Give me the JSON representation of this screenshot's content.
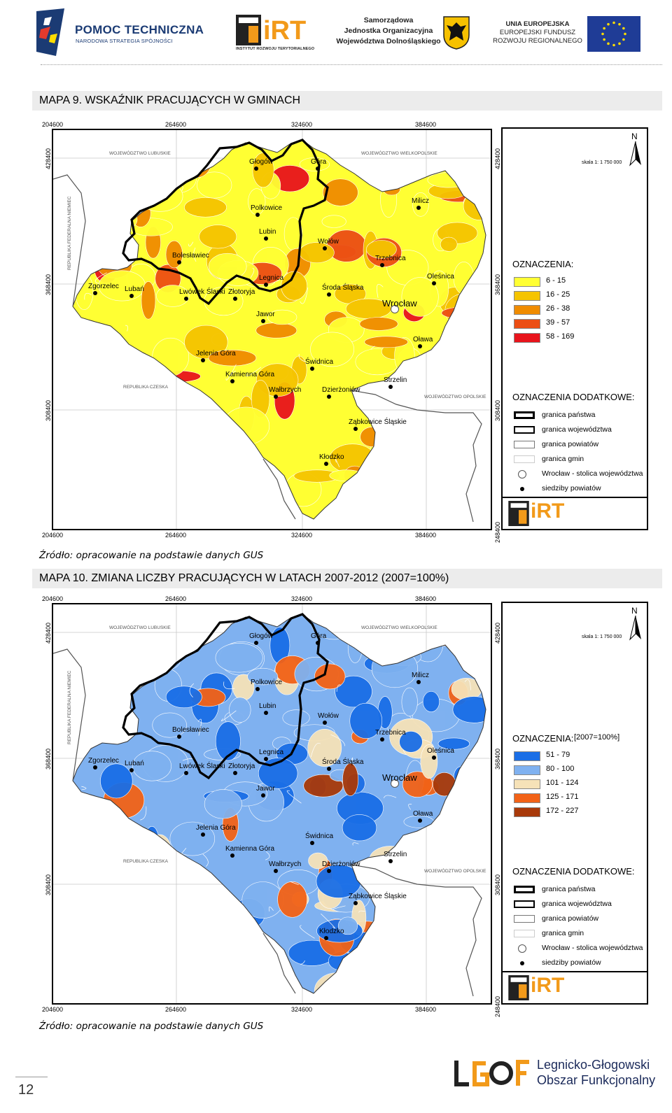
{
  "header": {
    "pomoc_title": "POMOC TECHNICZNA",
    "pomoc_sub": "NARODOWA STRATEGIA SPÓJNOŚCI",
    "irt_logo": "iRT",
    "irt_sub": "INSTYTUT ROZWOJU TERYTORIALNEGO",
    "samorzad_l1": "Samorządowa",
    "samorzad_l2": "Jednostka Organizacyjna",
    "samorzad_l3": "Województwa Dolnośląskiego",
    "ue_l1": "UNIA EUROPEJSKA",
    "ue_l2": "EUROPEJSKI FUNDUSZ",
    "ue_l3": "ROZWOJU REGIONALNEGO",
    "colors": {
      "navy": "#1b3b74",
      "eu_blue": "#1f3c96",
      "eu_star": "#ffdd00",
      "irt_orange": "#f29a1a"
    }
  },
  "map1": {
    "title": "MAPA 9. WSKAŹNIK PRACUJĄCYCH W GMINACH",
    "source": "Źródło: opracowanie na podstawie danych GUS",
    "legend_title": "OZNACZENIA:",
    "legend_items": [
      {
        "label": "6 - 15",
        "color": "#ffff33"
      },
      {
        "label": "16 - 25",
        "color": "#f5c400"
      },
      {
        "label": "26 - 38",
        "color": "#f08c00"
      },
      {
        "label": "39 - 57",
        "color": "#ec4e14"
      },
      {
        "label": "58 - 169",
        "color": "#e8141c"
      }
    ]
  },
  "map2": {
    "title": "MAPA 10. ZMIANA LICZBY PRACUJĄCYCH W LATACH 2007-2012 (2007=100%)",
    "source": "Źródło: opracowanie na podstawie danych GUS",
    "legend_title": "OZNACZENIA:",
    "legend_subtitle": "[2007=100%]",
    "legend_items": [
      {
        "label": "51 - 79",
        "color": "#1a6ee6"
      },
      {
        "label": "80 - 100",
        "color": "#7fb1f0"
      },
      {
        "label": "101 - 124",
        "color": "#f6e2b8"
      },
      {
        "label": "125 - 171",
        "color": "#f26217"
      },
      {
        "label": "172 - 227",
        "color": "#a8390a"
      }
    ]
  },
  "common": {
    "scale": "skala 1: 1 750 000",
    "north": "N",
    "extra_title": "OZNACZENIA DODATKOWE:",
    "extra_items": [
      "granica państwa",
      "granica województwa",
      "granica powiatów",
      "granica gmin",
      "Wrocław - stolica województwa",
      "siedziby powiatów"
    ],
    "irt_logo": "iRT",
    "x_ticks": [
      "204600",
      "264600",
      "324600",
      "384600"
    ],
    "y_ticks": [
      "428400",
      "368400",
      "308400",
      "248400"
    ],
    "regions": [
      "WOJEWÓDZTWO LUBUSKIE",
      "WOJEWÓDZTWO WIELKOPOLSKIE",
      "REPUBLIKA FEDERALNA NIEMIEC",
      "REPUBLIKA CZESKA",
      "WOJEWÓDZTWO OPOLSKIE"
    ],
    "towns": [
      "Głogów",
      "Góra",
      "Polkowice",
      "Milicz",
      "Lubin",
      "Wołów",
      "Trzebnica",
      "Bolesławiec",
      "Oleśnica",
      "Zgorzelec",
      "Legnica",
      "Lubań",
      "Lwówek Śląski",
      "Złotoryja",
      "Środa Śląska",
      "Wrocław",
      "Jawor",
      "Oława",
      "Jelenia Góra",
      "Świdnica",
      "Kamienna Góra",
      "Strzelin",
      "Wałbrzych",
      "Dzierżoniów",
      "Ząbkowice Śląskie",
      "Kłodzko"
    ]
  },
  "footer": {
    "page_number": "12",
    "lgof_logo": "LGOF",
    "lgof_l1": "Legnicko-Głogowski",
    "lgof_l2": "Obszar Funkcjonalny"
  }
}
